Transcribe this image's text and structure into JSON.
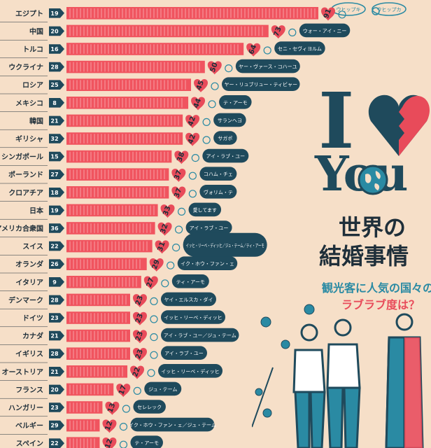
{
  "colors": {
    "background": "#f6dfc8",
    "bar": "#f0545f",
    "bar_stripe": "#f7a0a6",
    "navy": "#1f4a5c",
    "teal": "#2a8aa3",
    "pink": "#e84b5a",
    "badge": "#1f4a5c",
    "bubble": "#1f4a5c"
  },
  "header_bubbles": [
    "ウヒップキ",
    "ウヒップカ"
  ],
  "title": {
    "line1": "世界の",
    "line2": "結婚事情",
    "subtitle1": "観光客に人気の国々の",
    "subtitle2": "ラブラブ度は？",
    "big_letter": "I",
    "you": "You"
  },
  "icons": [
    "heart-icon",
    "globe-icon",
    "ring-icon",
    "virus-icon",
    "couple-illustration"
  ],
  "chart_data": {
    "type": "bar",
    "categories": [
      "エジプト",
      "中国",
      "トルコ",
      "ウクライナ",
      "ロシア",
      "メキシコ",
      "韓国",
      "ギリシャ",
      "シンガポール",
      "ポーランド",
      "クロアチア",
      "日本",
      "アメリカ合衆国",
      "スイス",
      "オランダ",
      "イタリア",
      "デンマーク",
      "ドイツ",
      "カナダ",
      "イギリス",
      "オーストリア",
      "フランス",
      "ハンガリー",
      "ベルギー",
      "スペイン"
    ],
    "values": [
      91,
      73,
      64,
      50,
      45,
      44,
      42,
      42,
      38,
      37,
      37,
      33,
      32,
      31,
      29,
      27,
      23,
      23,
      23,
      23,
      22,
      17,
      13,
      12,
      12
    ],
    "badges": [
      "19",
      "20",
      "16",
      "28",
      "25",
      "8",
      "21",
      "32",
      "15",
      "27",
      "18",
      "19",
      "36",
      "22",
      "26",
      "9",
      "28",
      "23",
      "21",
      "28",
      "21",
      "20",
      "23",
      "29",
      "22"
    ],
    "phrases": [
      "",
      "ウォー・アイ・ニー",
      "セニ・セヴィヨルム",
      "ヤー・ヴァース・コハーユ",
      "ヤー・リュブリュー・ティビャー",
      "テ・アーモ",
      "サランヘヨ",
      "サガポ",
      "アイ・ラブ・ユー",
      "コハム・チェ",
      "ヴォリム・テ",
      "愛してます",
      "アイ・ラブ・ユー",
      "イッヒ・リーベ・ディッヒ／ジュ・テーム／ティ・アーモ",
      "イク・ホウ・ファン・ェ",
      "ティ・アーモ",
      "ヤイ・エルスカ・ダイ",
      "イッヒ・リーベ・ディッヒ",
      "アイ・ラブ・ユー／ジュ・テーム",
      "アイ・ラブ・ユー",
      "イッヒ・リーベ・ディッヒ",
      "ジュ・テーム",
      "セレレック",
      "イク・ホウ・ファン・ェ／ジュ・テーム",
      "テ・アーモ"
    ],
    "xlim": [
      0,
      91
    ],
    "grid": false,
    "legend": "none"
  }
}
